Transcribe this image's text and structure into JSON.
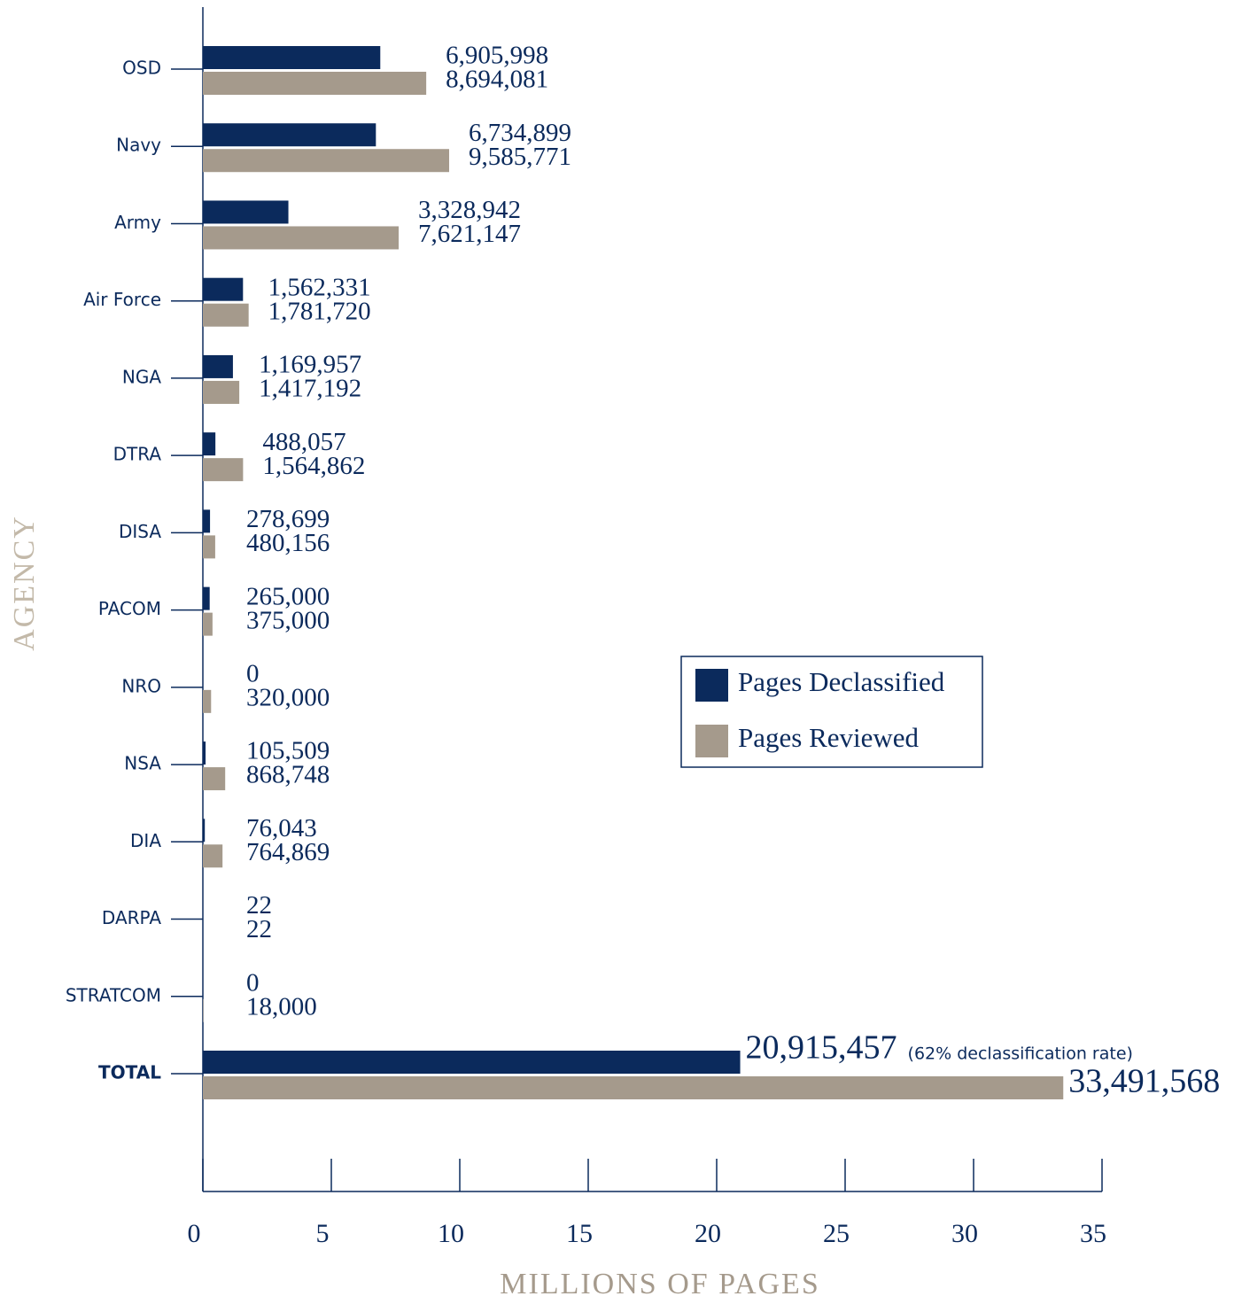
{
  "chart_data": {
    "type": "barh",
    "categories": [
      "OSD",
      "Navy",
      "Army",
      "Air Force",
      "NGA",
      "DTRA",
      "DISA",
      "PACOM",
      "NRO",
      "NSA",
      "DIA",
      "DARPA",
      "STRATCOM",
      "TOTAL"
    ],
    "series": [
      {
        "name": "Pages Declassified",
        "color": "#0b2a5c",
        "values": [
          6.905998,
          6.734899,
          3.328942,
          1.562331,
          1.169957,
          0.488057,
          0.278699,
          0.265,
          0,
          0.105509,
          0.076043,
          2.2e-05,
          0,
          20.915457
        ],
        "value_labels": [
          "6,905,998",
          "6,734,899",
          "3,328,942",
          "1,562,331",
          "1,169,957",
          "488,057",
          "278,699",
          "265,000",
          "0",
          "105,509",
          "76,043",
          "22",
          "0",
          "20,915,457"
        ]
      },
      {
        "name": "Pages Reviewed",
        "color": "#a59a8c",
        "values": [
          8.694081,
          9.585771,
          7.621147,
          1.78172,
          1.417192,
          1.564862,
          0.480156,
          0.375,
          0.32,
          0.868748,
          0.764869,
          2.2e-05,
          0.018,
          33.491568
        ],
        "value_labels": [
          "8,694,081",
          "9,585,771",
          "7,621,147",
          "1,781,720",
          "1,417,192",
          "1,564,862",
          "480,156",
          "375,000",
          "320,000",
          "868,748",
          "764,869",
          "22",
          "18,000",
          "33,491,568"
        ]
      }
    ],
    "annotation": "(62% declassification rate)",
    "x_label": "MILLIONS OF PAGES",
    "y_label": "AGENCY",
    "xlim": [
      0,
      35
    ],
    "xticks": [
      0,
      5,
      10,
      15,
      20,
      25,
      30,
      35
    ],
    "legend": "right"
  }
}
